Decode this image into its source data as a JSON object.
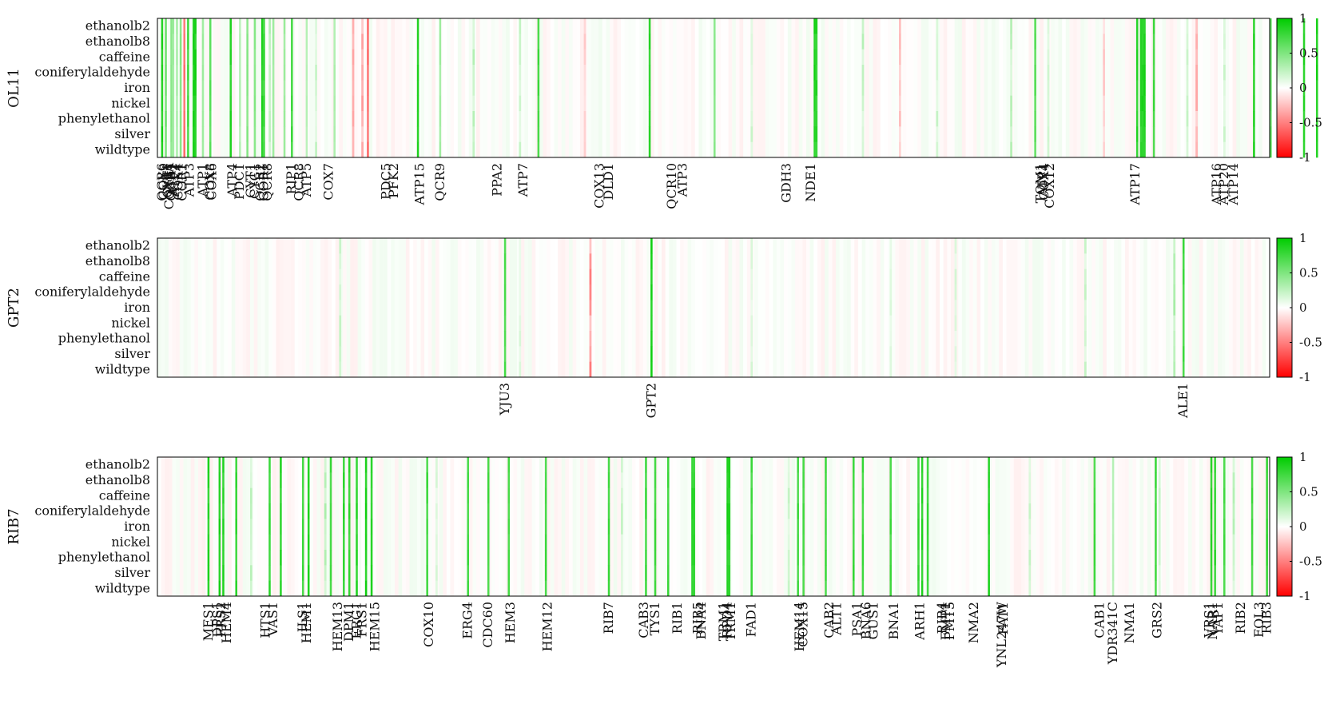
{
  "chart_data": [
    {
      "type": "heatmap",
      "panel_label": "OL11",
      "rows": [
        "ethanolb2",
        "ethanolb8",
        "caffeine",
        "coniferylaldehyde",
        "iron",
        "nickel",
        "phenylethanol",
        "silver",
        "wildtype"
      ],
      "num_columns": 600,
      "strong_columns": [
        {
          "col": 2,
          "v": 0.95
        },
        {
          "col": 4,
          "v": 0.6
        },
        {
          "col": 7,
          "v": 0.5
        },
        {
          "col": 8,
          "v": 0.4
        },
        {
          "col": 10,
          "v": 0.35
        },
        {
          "col": 12,
          "v": 0.5
        },
        {
          "col": 14,
          "v": -0.6
        },
        {
          "col": 16,
          "v": 0.8
        },
        {
          "col": 19,
          "v": 0.95
        },
        {
          "col": 20,
          "v": 0.95
        },
        {
          "col": 24,
          "v": 0.4
        },
        {
          "col": 28,
          "v": 0.7
        },
        {
          "col": 39,
          "v": 0.9
        },
        {
          "col": 44,
          "v": 0.3
        },
        {
          "col": 48,
          "v": 0.5
        },
        {
          "col": 52,
          "v": 0.5
        },
        {
          "col": 56,
          "v": 0.9
        },
        {
          "col": 57,
          "v": 0.8
        },
        {
          "col": 62,
          "v": 0.4
        },
        {
          "col": 68,
          "v": 0.4
        },
        {
          "col": 72,
          "v": 0.8
        },
        {
          "col": 80,
          "v": 0.3
        },
        {
          "col": 95,
          "v": 0.35
        },
        {
          "col": 113,
          "v": -0.6
        },
        {
          "col": 140,
          "v": 0.9
        },
        {
          "col": 152,
          "v": 0.4
        },
        {
          "col": 205,
          "v": 0.8
        },
        {
          "col": 265,
          "v": 0.9
        },
        {
          "col": 300,
          "v": 0.5
        },
        {
          "col": 354,
          "v": 0.95
        },
        {
          "col": 355,
          "v": 0.9
        },
        {
          "col": 473,
          "v": 0.7
        },
        {
          "col": 528,
          "v": 0.9
        },
        {
          "col": 530,
          "v": 0.9
        },
        {
          "col": 531,
          "v": 0.95
        },
        {
          "col": 532,
          "v": 0.95
        },
        {
          "col": 537,
          "v": 0.8
        },
        {
          "col": 591,
          "v": 0.9
        },
        {
          "col": 600,
          "v": 0.7
        },
        {
          "col": 618,
          "v": 0.9
        },
        {
          "col": 625,
          "v": 0.95
        }
      ],
      "light_columns": [
        {
          "col": 60,
          "v": 0.25
        },
        {
          "col": 85,
          "v": 0.2
        },
        {
          "col": 105,
          "v": -0.3
        },
        {
          "col": 110,
          "v": -0.35
        },
        {
          "col": 170,
          "v": 0.25
        },
        {
          "col": 195,
          "v": 0.2
        },
        {
          "col": 230,
          "v": -0.2
        },
        {
          "col": 320,
          "v": 0.2
        },
        {
          "col": 380,
          "v": 0.25
        },
        {
          "col": 400,
          "v": -0.25
        },
        {
          "col": 420,
          "v": 0.2
        },
        {
          "col": 460,
          "v": 0.25
        },
        {
          "col": 480,
          "v": 0.2
        },
        {
          "col": 510,
          "v": -0.2
        },
        {
          "col": 555,
          "v": 0.2
        },
        {
          "col": 560,
          "v": -0.3
        },
        {
          "col": 575,
          "v": 0.2
        },
        {
          "col": 610,
          "v": -0.25
        },
        {
          "col": 636,
          "v": -0.4
        }
      ],
      "gene_labels": [
        {
          "name": "QCR6",
          "col": 2
        },
        {
          "name": "COX9",
          "col": 3
        },
        {
          "name": "CYT1",
          "col": 5
        },
        {
          "name": "COX5A",
          "col": 6
        },
        {
          "name": "QCR7",
          "col": 7
        },
        {
          "name": "ATP2",
          "col": 8
        },
        {
          "name": "ATP1",
          "col": 9
        },
        {
          "name": "COX4",
          "col": 11
        },
        {
          "name": "COR1",
          "col": 13
        },
        {
          "name": "ATP3",
          "col": 17
        },
        {
          "name": "ATP1",
          "col": 24
        },
        {
          "name": "COX8",
          "col": 28
        },
        {
          "name": "COX6",
          "col": 29
        },
        {
          "name": "ATP4",
          "col": 40
        },
        {
          "name": "PDC1",
          "col": 44
        },
        {
          "name": "CYT1",
          "col": 50
        },
        {
          "name": "CYC1",
          "col": 52
        },
        {
          "name": "QCR2",
          "col": 55
        },
        {
          "name": "COR1",
          "col": 57
        },
        {
          "name": "QCR8",
          "col": 59
        },
        {
          "name": "RIP1",
          "col": 72
        },
        {
          "name": "QCR8",
          "col": 76
        },
        {
          "name": "ATP5",
          "col": 80
        },
        {
          "name": "COX7",
          "col": 92
        },
        {
          "name": "PDC5",
          "col": 123
        },
        {
          "name": "PFK2",
          "col": 127
        },
        {
          "name": "ATP15",
          "col": 141
        },
        {
          "name": "QCR9",
          "col": 152
        },
        {
          "name": "PPA2",
          "col": 183
        },
        {
          "name": "ATP7",
          "col": 197
        },
        {
          "name": "COX13",
          "col": 238
        },
        {
          "name": "DLD1",
          "col": 243
        },
        {
          "name": "QCR10",
          "col": 277
        },
        {
          "name": "ATP3",
          "col": 283
        },
        {
          "name": "GDH3",
          "col": 339
        },
        {
          "name": "NDE1",
          "col": 352
        },
        {
          "name": "TOM1",
          "col": 476
        },
        {
          "name": "ATP1",
          "col": 477
        },
        {
          "name": "COX4",
          "col": 478
        },
        {
          "name": "COX12",
          "col": 481
        },
        {
          "name": "ATP17",
          "col": 527
        },
        {
          "name": "ATP16",
          "col": 571
        },
        {
          "name": "ATP20",
          "col": 575
        },
        {
          "name": "ATP14",
          "col": 580
        }
      ],
      "colorbar": {
        "min": -1,
        "max": 1,
        "ticks": [
          1,
          0.5,
          0,
          -0.5,
          -1
        ],
        "low_color": "#ff0000",
        "mid_color": "#ffffff",
        "high_color": "#00cc00"
      }
    },
    {
      "type": "heatmap",
      "panel_label": "GPT2",
      "rows": [
        "ethanolb2",
        "ethanolb8",
        "caffeine",
        "coniferylaldehyde",
        "iron",
        "nickel",
        "phenylethanol",
        "silver",
        "wildtype"
      ],
      "num_columns": 600,
      "strong_columns": [
        {
          "col": 187,
          "v": 0.75
        },
        {
          "col": 266,
          "v": 0.95
        },
        {
          "col": 553,
          "v": 0.8
        }
      ],
      "light_columns": [
        {
          "col": 98,
          "v": 0.2
        },
        {
          "col": 195,
          "v": 0.15
        },
        {
          "col": 233,
          "v": -0.45
        },
        {
          "col": 320,
          "v": 0.15
        },
        {
          "col": 395,
          "v": 0.15
        },
        {
          "col": 430,
          "v": 0.15
        },
        {
          "col": 500,
          "v": 0.2
        },
        {
          "col": 548,
          "v": 0.3
        }
      ],
      "gene_labels": [
        {
          "name": "YJU3",
          "col": 187
        },
        {
          "name": "GPT2",
          "col": 266
        },
        {
          "name": "ALE1",
          "col": 553
        }
      ],
      "colorbar": {
        "min": -1,
        "max": 1,
        "ticks": [
          1,
          0.5,
          0,
          -0.5,
          -1
        ],
        "low_color": "#ff0000",
        "mid_color": "#ffffff",
        "high_color": "#00cc00"
      }
    },
    {
      "type": "heatmap",
      "panel_label": "RIB7",
      "rows": [
        "ethanolb2",
        "ethanolb8",
        "caffeine",
        "coniferylaldehyde",
        "iron",
        "nickel",
        "phenylethanol",
        "silver",
        "wildtype"
      ],
      "num_columns": 600,
      "strong_columns": [
        {
          "col": 27,
          "v": 0.9
        },
        {
          "col": 33,
          "v": 0.95
        },
        {
          "col": 35,
          "v": 0.9
        },
        {
          "col": 42,
          "v": 0.85
        },
        {
          "col": 60,
          "v": 0.85
        },
        {
          "col": 66,
          "v": 0.9
        },
        {
          "col": 78,
          "v": 0.8
        },
        {
          "col": 81,
          "v": 0.9
        },
        {
          "col": 93,
          "v": 0.8
        },
        {
          "col": 100,
          "v": 0.85
        },
        {
          "col": 103,
          "v": 0.85
        },
        {
          "col": 107,
          "v": 0.9
        },
        {
          "col": 112,
          "v": 0.95
        },
        {
          "col": 115,
          "v": 0.9
        },
        {
          "col": 145,
          "v": 0.8
        },
        {
          "col": 167,
          "v": 0.8
        },
        {
          "col": 178,
          "v": 0.8
        },
        {
          "col": 189,
          "v": 0.8
        },
        {
          "col": 209,
          "v": 0.8
        },
        {
          "col": 243,
          "v": 0.8
        },
        {
          "col": 263,
          "v": 0.8
        },
        {
          "col": 268,
          "v": 0.8
        },
        {
          "col": 275,
          "v": 0.8
        },
        {
          "col": 288,
          "v": 0.9
        },
        {
          "col": 289,
          "v": 0.85
        },
        {
          "col": 307,
          "v": 0.95
        },
        {
          "col": 308,
          "v": 0.9
        },
        {
          "col": 320,
          "v": 0.8
        },
        {
          "col": 345,
          "v": 0.8
        },
        {
          "col": 348,
          "v": 0.8
        },
        {
          "col": 360,
          "v": 0.8
        },
        {
          "col": 375,
          "v": 0.8
        },
        {
          "col": 380,
          "v": 0.8
        },
        {
          "col": 395,
          "v": 0.8
        },
        {
          "col": 410,
          "v": 0.85
        },
        {
          "col": 412,
          "v": 0.9
        },
        {
          "col": 415,
          "v": 0.85
        },
        {
          "col": 448,
          "v": 0.9
        },
        {
          "col": 505,
          "v": 0.8
        },
        {
          "col": 515,
          "v": 0.3
        },
        {
          "col": 538,
          "v": 0.8
        },
        {
          "col": 568,
          "v": 0.9
        },
        {
          "col": 570,
          "v": 0.85
        },
        {
          "col": 575,
          "v": 0.8
        },
        {
          "col": 590,
          "v": 0.8
        },
        {
          "col": 598,
          "v": 0.85
        }
      ],
      "light_columns": [
        {
          "col": 50,
          "v": 0.25
        },
        {
          "col": 90,
          "v": 0.3
        },
        {
          "col": 150,
          "v": 0.15
        },
        {
          "col": 250,
          "v": 0.2
        },
        {
          "col": 340,
          "v": 0.2
        },
        {
          "col": 410,
          "v": 0.2
        },
        {
          "col": 470,
          "v": 0.2
        },
        {
          "col": 540,
          "v": 0.2
        },
        {
          "col": 580,
          "v": 0.25
        }
      ],
      "gene_labels": [
        {
          "name": "MES1",
          "col": 27
        },
        {
          "name": "DPS1",
          "col": 32
        },
        {
          "name": "FRS2",
          "col": 34
        },
        {
          "name": "HEM4",
          "col": 37
        },
        {
          "name": "HTS1",
          "col": 58
        },
        {
          "name": "VAS1",
          "col": 62
        },
        {
          "name": "ILS1",
          "col": 78
        },
        {
          "name": "HEM1",
          "col": 80
        },
        {
          "name": "HEM13",
          "col": 97
        },
        {
          "name": "DPM1",
          "col": 103
        },
        {
          "name": "ERG1",
          "col": 107
        },
        {
          "name": "FRS1",
          "col": 110
        },
        {
          "name": "HEM15",
          "col": 117
        },
        {
          "name": "COX10",
          "col": 146
        },
        {
          "name": "ERG4",
          "col": 167
        },
        {
          "name": "CDC60",
          "col": 178
        },
        {
          "name": "HEM3",
          "col": 190
        },
        {
          "name": "HEM12",
          "col": 210
        },
        {
          "name": "RIB7",
          "col": 243
        },
        {
          "name": "CAB3",
          "col": 262
        },
        {
          "name": "TYS1",
          "col": 268
        },
        {
          "name": "RIB1",
          "col": 280
        },
        {
          "name": "RIB5",
          "col": 291
        },
        {
          "name": "BNA4",
          "col": 293
        },
        {
          "name": "TRM1",
          "col": 305
        },
        {
          "name": "RPD4",
          "col": 307
        },
        {
          "name": "TRM1",
          "col": 309
        },
        {
          "name": "FAD1",
          "col": 320
        },
        {
          "name": "HEM14",
          "col": 346
        },
        {
          "name": "COX15",
          "col": 348
        },
        {
          "name": "CAB2",
          "col": 362
        },
        {
          "name": "ALT1",
          "col": 366
        },
        {
          "name": "PSA1",
          "col": 377
        },
        {
          "name": "BNA6",
          "col": 382
        },
        {
          "name": "GUS1",
          "col": 386
        },
        {
          "name": "BNA1",
          "col": 397
        },
        {
          "name": "ARH1",
          "col": 411
        },
        {
          "name": "RIB4",
          "col": 423
        },
        {
          "name": "FMT1",
          "col": 425
        },
        {
          "name": "PMT5",
          "col": 427
        },
        {
          "name": "NMA2",
          "col": 440
        },
        {
          "name": "FAT1",
          "col": 456
        },
        {
          "name": "YNL247W",
          "col": 455
        },
        {
          "name": "CAB1",
          "col": 508
        },
        {
          "name": "YDR341C",
          "col": 515
        },
        {
          "name": "NMA1",
          "col": 524
        },
        {
          "name": "GRS2",
          "col": 539
        },
        {
          "name": "VRS1",
          "col": 567
        },
        {
          "name": "NAR1",
          "col": 569
        },
        {
          "name": "YAP1",
          "col": 572
        },
        {
          "name": "RIB2",
          "col": 584
        },
        {
          "name": "FOL3",
          "col": 594
        },
        {
          "name": "RIB3",
          "col": 598
        }
      ],
      "colorbar": {
        "min": -1,
        "max": 1,
        "ticks": [
          1,
          0.5,
          0,
          -0.5,
          -1
        ],
        "low_color": "#ff0000",
        "mid_color": "#ffffff",
        "high_color": "#00cc00"
      }
    }
  ]
}
